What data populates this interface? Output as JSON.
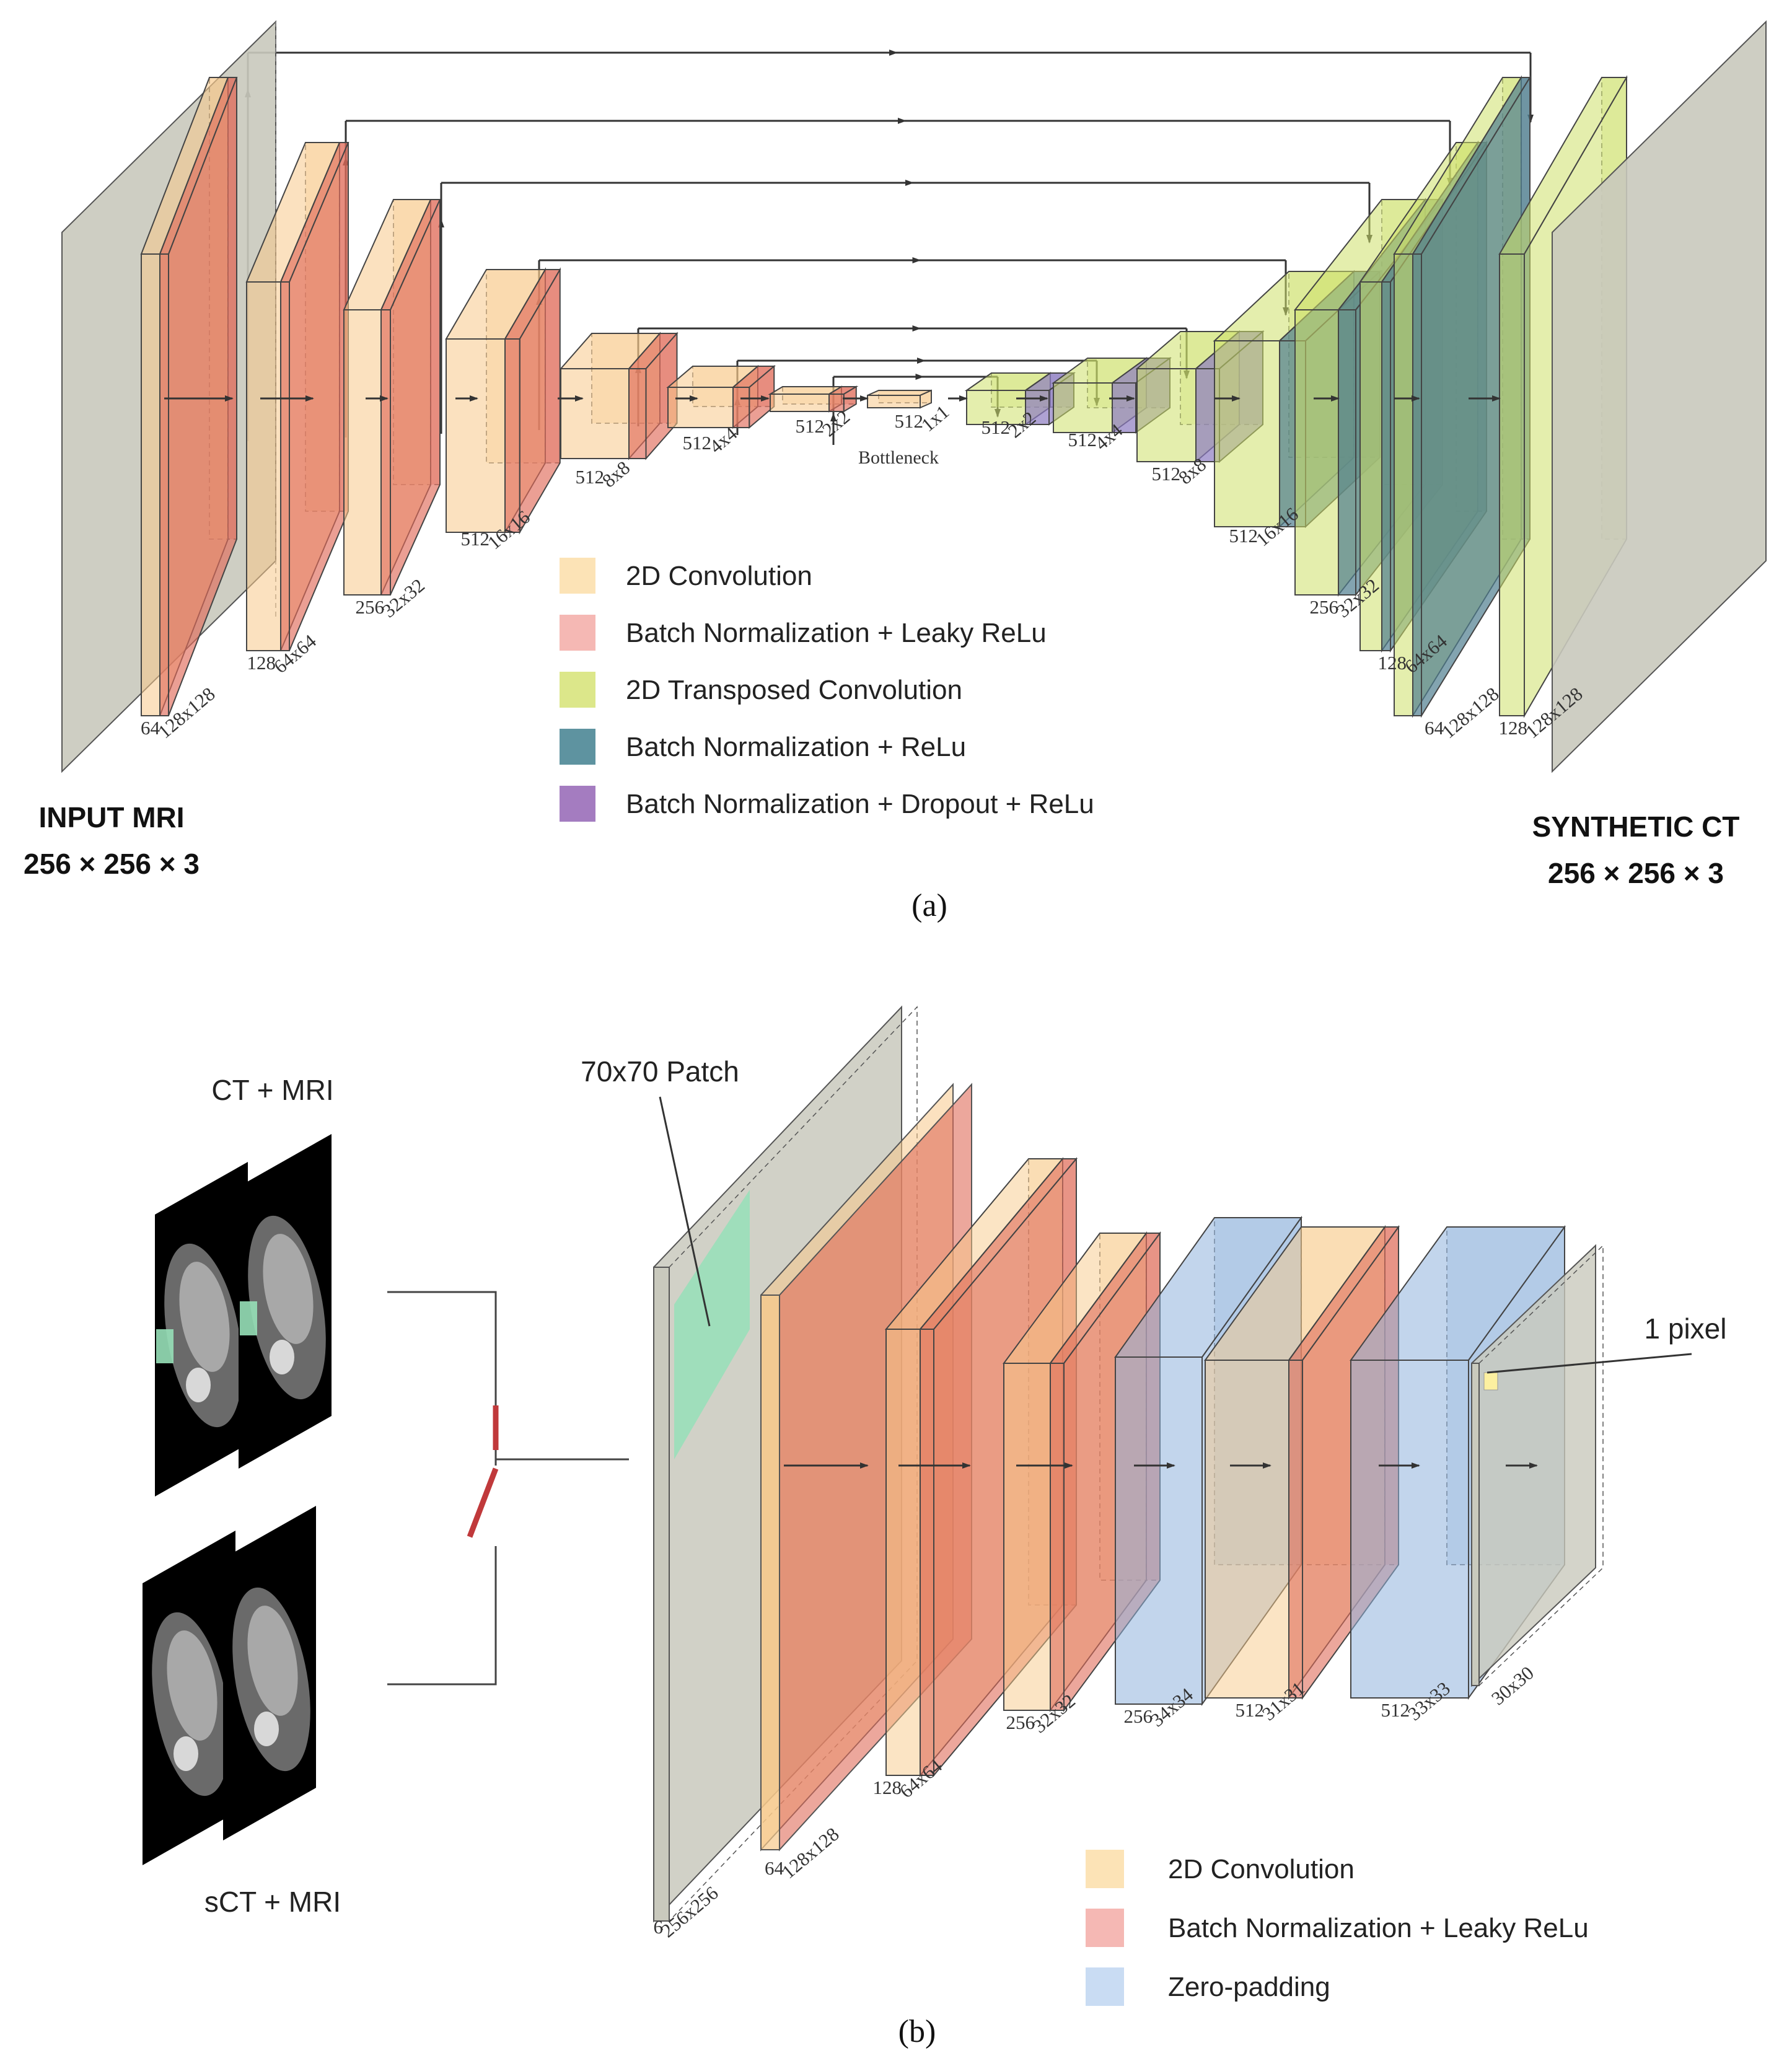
{
  "panel_a": {
    "input_label": "INPUT MRI",
    "input_size": "256 × 256 × 3",
    "output_label": "SYNTHETIC CT",
    "output_size": "256 × 256 × 3",
    "bottleneck_label": "Bottleneck",
    "caption": "(a)",
    "encoder_dims": [
      {
        "channels": "64",
        "spatial": "128x128"
      },
      {
        "channels": "128",
        "spatial": "64x64"
      },
      {
        "channels": "256",
        "spatial": "32x32"
      },
      {
        "channels": "512",
        "spatial": "16x16"
      },
      {
        "channels": "512",
        "spatial": "8x8"
      },
      {
        "channels": "512",
        "spatial": "4x4"
      },
      {
        "channels": "512",
        "spatial": "2x2"
      },
      {
        "channels": "512",
        "spatial": "1x1"
      }
    ],
    "decoder_dims": [
      {
        "channels": "512",
        "spatial": "2x2"
      },
      {
        "channels": "512",
        "spatial": "4x4"
      },
      {
        "channels": "512",
        "spatial": "8x8"
      },
      {
        "channels": "512",
        "spatial": "16x16"
      },
      {
        "channels": "256",
        "spatial": "32x32"
      },
      {
        "channels": "128",
        "spatial": "64x64"
      },
      {
        "channels": "64",
        "spatial": "128x128"
      },
      {
        "channels": "128",
        "spatial": "128x128"
      }
    ],
    "legend": [
      {
        "label": "2D Convolution",
        "color": "#fce3b6"
      },
      {
        "label": "Batch Normalization + Leaky ReLu",
        "color": "#f5b8b4"
      },
      {
        "label": "2D Transposed Convolution",
        "color": "#dce78a"
      },
      {
        "label": "Batch Normalization + ReLu",
        "color": "#5e93a0"
      },
      {
        "label": "Batch Normalization + Dropout + ReLu",
        "color": "#a47cc0"
      }
    ]
  },
  "panel_b": {
    "input_top": "CT + MRI",
    "input_bottom": "sCT + MRI",
    "patch_label": "70x70 Patch",
    "pixel_label": "1 pixel",
    "caption": "(b)",
    "dims": [
      {
        "channels": "6",
        "spatial": "256x256"
      },
      {
        "channels": "64",
        "spatial": "128x128"
      },
      {
        "channels": "128",
        "spatial": "64x64"
      },
      {
        "channels": "256",
        "spatial": "32x32"
      },
      {
        "channels": "256",
        "spatial": "34x34"
      },
      {
        "channels": "512",
        "spatial": "31x31"
      },
      {
        "channels": "512",
        "spatial": "33x33"
      },
      {
        "channels": "",
        "spatial": "30x30"
      }
    ],
    "legend": [
      {
        "label": "2D Convolution",
        "color": "#fce3b6"
      },
      {
        "label": "Batch Normalization + Leaky ReLu",
        "color": "#f5b8b4"
      },
      {
        "label": "Zero-padding",
        "color": "#c9dcf3"
      }
    ]
  },
  "colors": {
    "gray_plane": "#c9c9bd",
    "conv": "#f7c98a",
    "bn_leaky": "#e06c5a",
    "tconv": "#cde06a",
    "bn_relu": "#4f7d8e",
    "bn_drop": "#8c7bc0",
    "zero_pad": "#8fb2dc",
    "patch": "#97e0b8"
  }
}
